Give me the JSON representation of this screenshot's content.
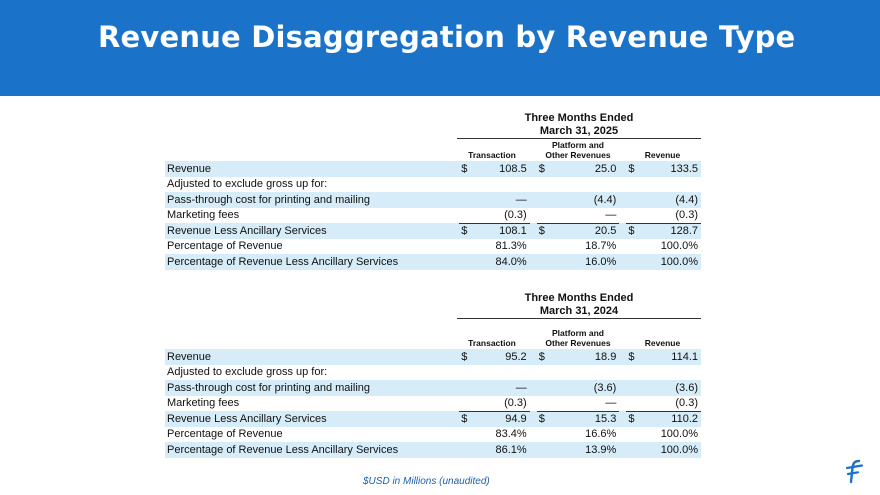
{
  "title": "Revenue Disaggregation by Revenue Type",
  "footer_note": "$USD in Millions (unaudited)",
  "logo_icon": "flywire-f-logo",
  "columns": {
    "transaction": "Transaction",
    "platform_line1": "Platform and",
    "platform_line2": "Other Revenues",
    "revenue": "Revenue"
  },
  "tables": [
    {
      "period_line1": "Three Months Ended",
      "period_line2": "March 31, 2025",
      "rows": [
        {
          "label": "Revenue",
          "cur1": "$",
          "v1": "108.5",
          "cur2": "$",
          "v2": "25.0",
          "cur3": "$",
          "v3": "133.5"
        },
        {
          "label": "Adjusted to exclude gross up for:",
          "cur1": "",
          "v1": "",
          "cur2": "",
          "v2": "",
          "cur3": "",
          "v3": ""
        },
        {
          "label": "Pass-through cost for printing and mailing",
          "cur1": "",
          "v1": "—",
          "cur2": "",
          "v2": "(4.4)",
          "cur3": "",
          "v3": "(4.4)"
        },
        {
          "label": "Marketing fees",
          "cur1": "",
          "v1": "(0.3)",
          "cur2": "",
          "v2": "—",
          "cur3": "",
          "v3": "(0.3)"
        },
        {
          "label": "Revenue Less Ancillary Services",
          "cur1": "$",
          "v1": "108.1",
          "cur2": "$",
          "v2": "20.5",
          "cur3": "$",
          "v3": "128.7"
        },
        {
          "label": "Percentage of Revenue",
          "cur1": "",
          "v1": "81.3%",
          "cur2": "",
          "v2": "18.7%",
          "cur3": "",
          "v3": "100.0%"
        },
        {
          "label": "Percentage of Revenue Less Ancillary Services",
          "cur1": "",
          "v1": "84.0%",
          "cur2": "",
          "v2": "16.0%",
          "cur3": "",
          "v3": "100.0%"
        }
      ]
    },
    {
      "period_line1": "Three Months Ended",
      "period_line2": "March 31, 2024",
      "rows": [
        {
          "label": "Revenue",
          "cur1": "$",
          "v1": "95.2",
          "cur2": "$",
          "v2": "18.9",
          "cur3": "$",
          "v3": "114.1"
        },
        {
          "label": "Adjusted to exclude gross up for:",
          "cur1": "",
          "v1": "",
          "cur2": "",
          "v2": "",
          "cur3": "",
          "v3": ""
        },
        {
          "label": "Pass-through cost for printing and mailing",
          "cur1": "",
          "v1": "—",
          "cur2": "",
          "v2": "(3.6)",
          "cur3": "",
          "v3": "(3.6)"
        },
        {
          "label": "Marketing fees",
          "cur1": "",
          "v1": "(0.3)",
          "cur2": "",
          "v2": "—",
          "cur3": "",
          "v3": "(0.3)"
        },
        {
          "label": "Revenue Less Ancillary Services",
          "cur1": "$",
          "v1": "94.9",
          "cur2": "$",
          "v2": "15.3",
          "cur3": "$",
          "v3": "110.2"
        },
        {
          "label": "Percentage of Revenue",
          "cur1": "",
          "v1": "83.4%",
          "cur2": "",
          "v2": "16.6%",
          "cur3": "",
          "v3": "100.0%"
        },
        {
          "label": "Percentage of Revenue Less Ancillary Services",
          "cur1": "",
          "v1": "86.1%",
          "cur2": "",
          "v2": "13.9%",
          "cur3": "",
          "v3": "100.0%"
        }
      ]
    }
  ]
}
